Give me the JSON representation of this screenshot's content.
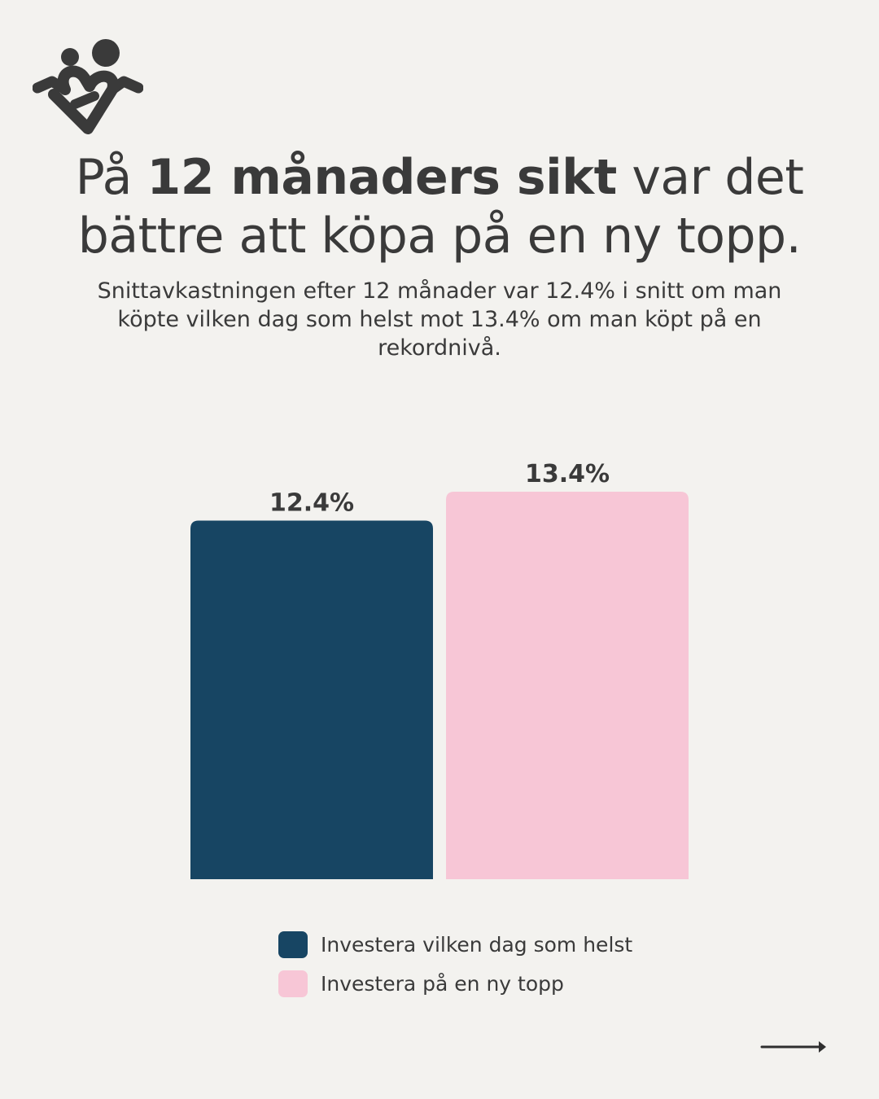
{
  "headline": {
    "part1": "På ",
    "bold": "12 månaders sikt",
    "part2": " var det bättre att köpa på en ny topp."
  },
  "subtitle": "Snittavkastningen efter 12 månader var 12.4% i snitt om man köpte vilken dag som helst mot 13.4% om man köpt på en rekordnivå.",
  "colors": {
    "background": "#f3f2ef",
    "text": "#3a3a3a",
    "series1": "#174563",
    "series2": "#f7c6d6"
  },
  "icons": {
    "logo": "heart-people-logo",
    "next": "arrow-right-icon"
  },
  "chart_data": {
    "type": "bar",
    "categories": [
      "Investera vilken dag som helst",
      "Investera på en ny topp"
    ],
    "values": [
      12.4,
      13.4
    ],
    "value_labels": [
      "12.4%",
      "13.4%"
    ],
    "colors": [
      "#174563",
      "#f7c6d6"
    ],
    "ylim": [
      0,
      13.4
    ],
    "grid": false,
    "legend": {
      "placement": "bottom",
      "entries": [
        {
          "label": "Investera vilken dag som helst",
          "color": "#174563"
        },
        {
          "label": "Investera på en ny topp",
          "color": "#f7c6d6"
        }
      ]
    }
  }
}
